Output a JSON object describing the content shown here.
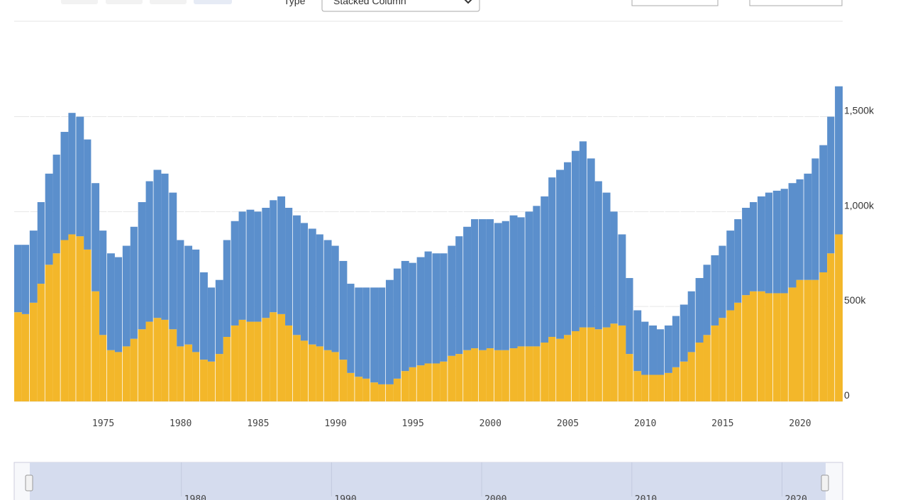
{
  "controls": {
    "type_label": "Type",
    "type_value": "Stacked Column"
  },
  "chart_data": {
    "type": "stacked-column",
    "x": [
      1969.5,
      1970,
      1970.5,
      1971,
      1971.5,
      1972,
      1972.5,
      1973,
      1973.5,
      1974,
      1974.5,
      1975,
      1975.5,
      1976,
      1976.5,
      1977,
      1977.5,
      1978,
      1978.5,
      1979,
      1979.5,
      1980,
      1980.5,
      1981,
      1981.5,
      1982,
      1982.5,
      1983,
      1983.5,
      1984,
      1984.5,
      1985,
      1985.5,
      1986,
      1986.5,
      1987,
      1987.5,
      1988,
      1988.5,
      1989,
      1989.5,
      1990,
      1990.5,
      1991,
      1991.5,
      1992,
      1992.5,
      1993,
      1993.5,
      1994,
      1994.5,
      1995,
      1995.5,
      1996,
      1996.5,
      1997,
      1997.5,
      1998,
      1998.5,
      1999,
      1999.5,
      2000,
      2000.5,
      2001,
      2001.5,
      2002,
      2002.5,
      2003,
      2003.5,
      2004,
      2004.5,
      2005,
      2005.5,
      2006,
      2006.5,
      2007,
      2007.5,
      2008,
      2008.5,
      2009,
      2009.5,
      2010,
      2010.5,
      2011,
      2011.5,
      2012,
      2012.5,
      2013,
      2013.5,
      2014,
      2014.5,
      2015,
      2015.5,
      2016,
      2016.5,
      2017,
      2017.5,
      2018,
      2018.5,
      2019,
      2019.5,
      2020,
      2020.5,
      2021,
      2021.5,
      2022,
      2022.5
    ],
    "series": [
      {
        "color": "#f3b72a",
        "values": [
          470,
          460,
          520,
          620,
          720,
          780,
          850,
          880,
          870,
          800,
          580,
          350,
          270,
          260,
          290,
          330,
          380,
          420,
          440,
          430,
          380,
          290,
          300,
          260,
          220,
          210,
          250,
          340,
          400,
          430,
          420,
          420,
          440,
          470,
          460,
          400,
          350,
          320,
          300,
          290,
          270,
          260,
          220,
          150,
          130,
          120,
          100,
          90,
          90,
          120,
          160,
          180,
          190,
          200,
          200,
          210,
          240,
          250,
          270,
          280,
          270,
          280,
          270,
          270,
          280,
          290,
          290,
          290,
          310,
          340,
          330,
          350,
          370,
          390,
          390,
          380,
          390,
          410,
          400,
          250,
          160,
          140,
          140,
          140,
          150,
          180,
          210,
          260,
          310,
          350,
          400,
          440,
          480,
          520,
          560,
          580,
          580,
          570,
          570,
          570,
          600,
          640,
          640,
          640,
          680,
          780,
          880
        ]
      },
      {
        "color": "#5b8fcc",
        "values": [
          355,
          365,
          380,
          430,
          480,
          520,
          570,
          640,
          630,
          580,
          570,
          550,
          510,
          500,
          530,
          590,
          670,
          740,
          780,
          770,
          720,
          560,
          520,
          540,
          460,
          390,
          390,
          510,
          550,
          570,
          590,
          580,
          580,
          590,
          620,
          620,
          630,
          620,
          610,
          590,
          580,
          560,
          520,
          470,
          470,
          480,
          500,
          510,
          550,
          580,
          580,
          550,
          570,
          590,
          580,
          570,
          580,
          620,
          650,
          680,
          690,
          680,
          670,
          680,
          700,
          680,
          710,
          740,
          770,
          840,
          890,
          910,
          950,
          980,
          890,
          780,
          710,
          590,
          480,
          400,
          320,
          280,
          260,
          240,
          250,
          270,
          300,
          320,
          340,
          370,
          370,
          380,
          420,
          440,
          460,
          470,
          500,
          530,
          540,
          550,
          550,
          530,
          560,
          640,
          670,
          720,
          780
        ]
      }
    ],
    "xlim": [
      1969.25,
      2022.75
    ],
    "xticks": [
      1975,
      1980,
      1985,
      1990,
      1995,
      2000,
      2005,
      2010,
      2015,
      2020
    ],
    "ylim": [
      0,
      1700
    ],
    "yticks": [
      0,
      {
        "value": 500,
        "label": "500k"
      },
      {
        "value": 1000,
        "label": "1,000k"
      },
      {
        "value": 1500,
        "label": "1,500k"
      }
    ],
    "grid": true,
    "navigator_xticks": [
      1980,
      1990,
      2000,
      2010,
      2020
    ]
  }
}
